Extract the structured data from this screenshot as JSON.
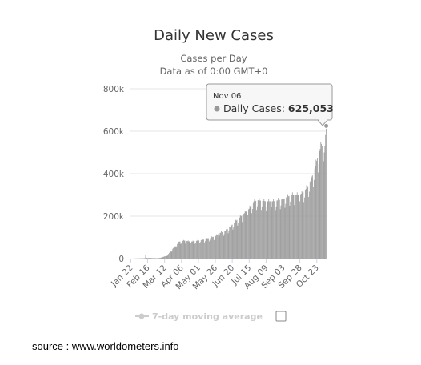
{
  "chart_data": {
    "type": "bar",
    "title": "Daily New Cases",
    "subtitle": "Cases per Day",
    "subtitle2": "Data as of 0:00 GMT+0",
    "series_color": "#999999",
    "ylim": [
      0,
      800000
    ],
    "y_ticks": [
      0,
      200000,
      400000,
      600000,
      800000
    ],
    "y_tick_labels": [
      "0",
      "200k",
      "400k",
      "600k",
      "800k"
    ],
    "x_start": "2020-01-22",
    "x_end": "2020-11-06",
    "x_tick_labels": [
      "Jan 22",
      "Feb 16",
      "Mar 12",
      "Apr 06",
      "May 01",
      "May 26",
      "Jun 20",
      "Jul 15",
      "Aug 09",
      "Sep 03",
      "Sep 28",
      "Oct 23"
    ],
    "series": [
      {
        "name": "Daily Cases",
        "points": [
          [
            "2020-01-22",
            0
          ],
          [
            "2020-02-12",
            2000
          ],
          [
            "2020-02-13",
            15000
          ],
          [
            "2020-02-14",
            4000
          ],
          [
            "2020-02-29",
            2000
          ],
          [
            "2020-03-05",
            3000
          ],
          [
            "2020-03-12",
            10000
          ],
          [
            "2020-03-16",
            15000
          ],
          [
            "2020-03-20",
            30000
          ],
          [
            "2020-03-25",
            50000
          ],
          [
            "2020-03-30",
            65000
          ],
          [
            "2020-04-03",
            80000
          ],
          [
            "2020-04-10",
            85000
          ],
          [
            "2020-04-20",
            80000
          ],
          [
            "2020-05-01",
            85000
          ],
          [
            "2020-05-10",
            90000
          ],
          [
            "2020-05-20",
            100000
          ],
          [
            "2020-05-26",
            105000
          ],
          [
            "2020-06-01",
            120000
          ],
          [
            "2020-06-10",
            130000
          ],
          [
            "2020-06-20",
            160000
          ],
          [
            "2020-06-28",
            185000
          ],
          [
            "2020-07-05",
            205000
          ],
          [
            "2020-07-15",
            235000
          ],
          [
            "2020-07-22",
            270000
          ],
          [
            "2020-07-28",
            275000
          ],
          [
            "2020-08-09",
            270000
          ],
          [
            "2020-08-20",
            270000
          ],
          [
            "2020-09-03",
            280000
          ],
          [
            "2020-09-15",
            300000
          ],
          [
            "2020-09-28",
            300000
          ],
          [
            "2020-10-05",
            320000
          ],
          [
            "2020-10-12",
            350000
          ],
          [
            "2020-10-18",
            400000
          ],
          [
            "2020-10-23",
            460000
          ],
          [
            "2020-10-30",
            540000
          ],
          [
            "2020-11-03",
            500000
          ],
          [
            "2020-11-05",
            560000
          ],
          [
            "2020-11-06",
            625053
          ]
        ]
      }
    ],
    "tooltip": {
      "date": "Nov 06",
      "label": "Daily Cases:",
      "value": "625,053"
    },
    "legend": {
      "label": "7-day moving average",
      "enabled": false,
      "placement": "bottom-center"
    },
    "grid": true
  },
  "source_text": "source : www.worldometers.info"
}
